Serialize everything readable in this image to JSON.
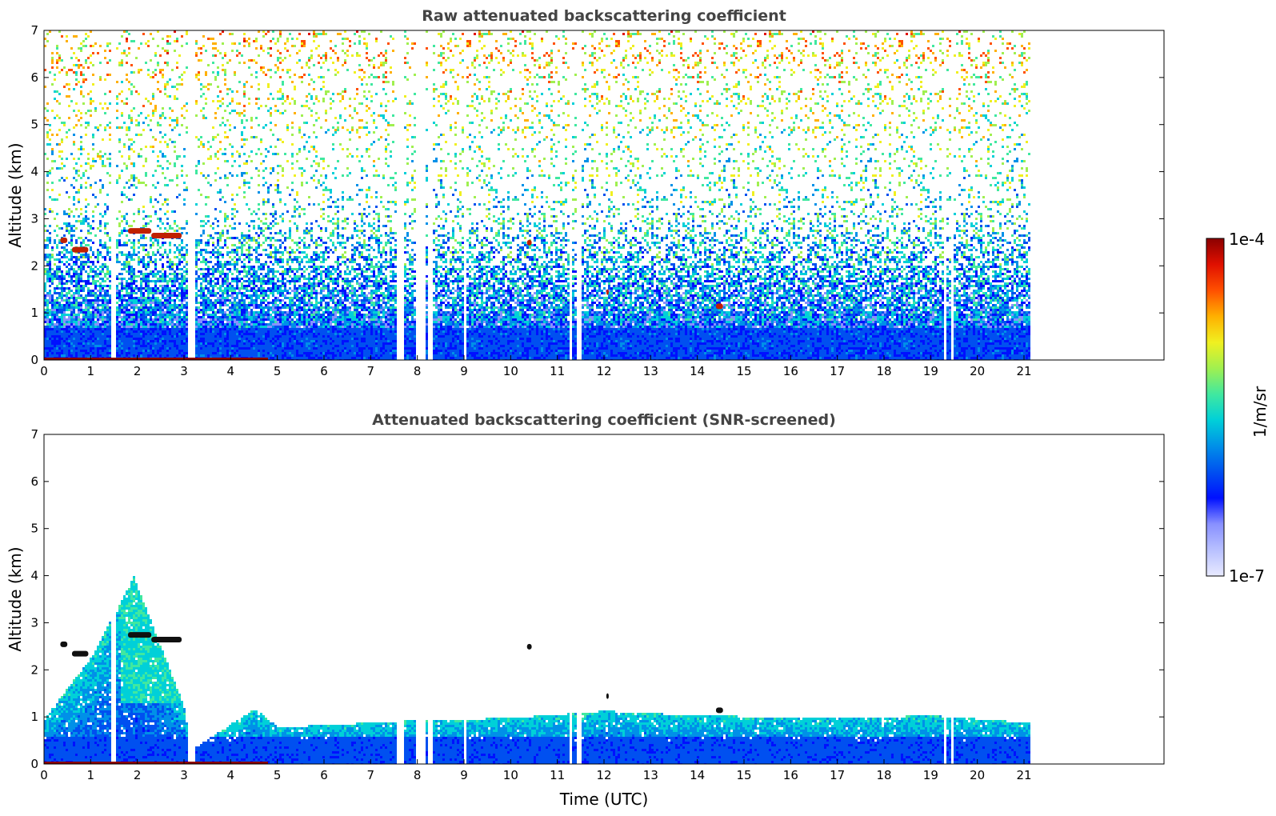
{
  "chart_data": [
    {
      "type": "heatmap",
      "title": "Raw attenuated backscattering coefficient",
      "xlabel": "",
      "ylabel": "Altitude (km)",
      "xlim": [
        0,
        24
      ],
      "ylim": [
        0,
        7
      ],
      "xticks": [
        "0",
        "1",
        "2",
        "3",
        "4",
        "5",
        "6",
        "7",
        "8",
        "9",
        "10",
        "11",
        "12",
        "13",
        "14",
        "15",
        "16",
        "17",
        "18",
        "19",
        "20",
        "21"
      ],
      "yticks": [
        "0",
        "1",
        "2",
        "3",
        "4",
        "5",
        "6",
        "7"
      ],
      "data_end_hour": 21.1,
      "missing_data_gaps_hours": [
        [
          1.42,
          1.52
        ],
        [
          3.05,
          3.2
        ],
        [
          7.55,
          7.7
        ],
        [
          7.95,
          8.15
        ],
        [
          8.2,
          8.3
        ],
        [
          9.0,
          9.05
        ],
        [
          11.25,
          11.3
        ],
        [
          11.4,
          11.5
        ],
        [
          19.25,
          19.3
        ],
        [
          19.4,
          19.45
        ]
      ],
      "aerosol_layer_top_km": 0.7,
      "cloud_features": [
        {
          "x_hours": [
            0.35,
            0.5
          ],
          "altitude_km": 2.55
        },
        {
          "x_hours": [
            0.6,
            0.95
          ],
          "altitude_km": 2.35
        },
        {
          "x_hours": [
            1.8,
            2.3
          ],
          "altitude_km": 2.75
        },
        {
          "x_hours": [
            2.3,
            2.95
          ],
          "altitude_km": 2.65
        },
        {
          "x_hours": [
            10.35,
            10.45
          ],
          "altitude_km": 2.5
        },
        {
          "x_hours": [
            14.4,
            14.55
          ],
          "altitude_km": 1.15
        },
        {
          "x_hours": [
            12.05,
            12.1
          ],
          "altitude_km": 1.45
        }
      ]
    },
    {
      "type": "heatmap",
      "title": "Attenuated backscattering coefficient (SNR-screened)",
      "xlabel": "Time (UTC)",
      "ylabel": "Altitude (km)",
      "xlim": [
        0,
        24
      ],
      "ylim": [
        0,
        7
      ],
      "xticks": [
        "0",
        "1",
        "2",
        "3",
        "4",
        "5",
        "6",
        "7",
        "8",
        "9",
        "10",
        "11",
        "12",
        "13",
        "14",
        "15",
        "16",
        "17",
        "18",
        "19",
        "20",
        "21"
      ],
      "yticks": [
        "0",
        "1",
        "2",
        "3",
        "4",
        "5",
        "6",
        "7"
      ],
      "data_end_hour": 21.1,
      "signal_top_km_by_hour": [
        [
          0,
          1.0
        ],
        [
          1,
          2.3
        ],
        [
          1.9,
          4.0
        ],
        [
          3,
          1.2
        ],
        [
          3.1,
          0.3
        ],
        [
          4.5,
          1.2
        ],
        [
          5,
          0.8
        ],
        [
          7,
          0.9
        ],
        [
          8,
          0.95
        ],
        [
          10,
          1.0
        ],
        [
          12,
          1.15
        ],
        [
          14,
          1.05
        ],
        [
          17,
          1.0
        ],
        [
          19,
          1.05
        ],
        [
          21.1,
          0.9
        ]
      ]
    }
  ],
  "colorbar": {
    "label": "1/m/sr",
    "max_label": "1e-4",
    "min_label": "1e-7",
    "colors": [
      "#e8eaff",
      "#b8c0ff",
      "#8890ff",
      "#0010ff",
      "#0050f0",
      "#0090e8",
      "#00d0d8",
      "#40e8a0",
      "#a0f050",
      "#f0f020",
      "#ffb000",
      "#ff5000",
      "#e01000",
      "#8b0000"
    ]
  }
}
